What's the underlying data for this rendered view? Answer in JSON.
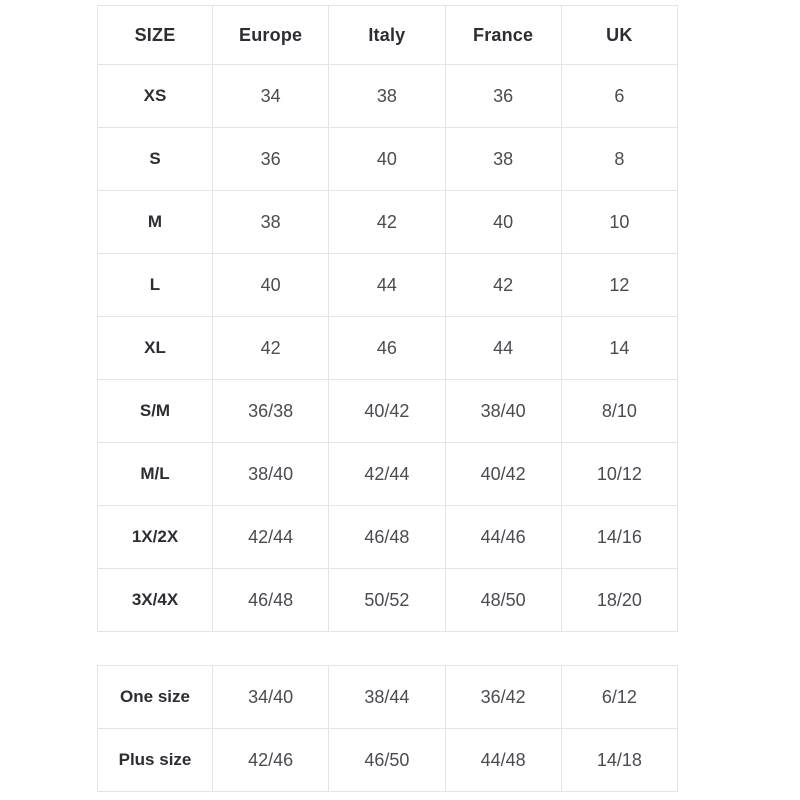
{
  "colors": {
    "background": "#ffffff",
    "border": "#e4e4e6",
    "heading_text": "#2d2d33",
    "value_text": "#4b4b51"
  },
  "size_conversion_table": {
    "columns": [
      "SIZE",
      "Europe",
      "Italy",
      "France",
      "UK"
    ],
    "rows": [
      {
        "label": "XS",
        "values": [
          "34",
          "38",
          "36",
          "6"
        ]
      },
      {
        "label": "S",
        "values": [
          "36",
          "40",
          "38",
          "8"
        ]
      },
      {
        "label": "M",
        "values": [
          "38",
          "42",
          "40",
          "10"
        ]
      },
      {
        "label": "L",
        "values": [
          "40",
          "44",
          "42",
          "12"
        ]
      },
      {
        "label": "XL",
        "values": [
          "42",
          "46",
          "44",
          "14"
        ]
      },
      {
        "label": "S/M",
        "values": [
          "36/38",
          "40/42",
          "38/40",
          "8/10"
        ]
      },
      {
        "label": "M/L",
        "values": [
          "38/40",
          "42/44",
          "40/42",
          "10/12"
        ]
      },
      {
        "label": "1X/2X",
        "values": [
          "42/44",
          "46/48",
          "44/46",
          "14/16"
        ]
      },
      {
        "label": "3X/4X",
        "values": [
          "46/48",
          "50/52",
          "48/50",
          "18/20"
        ]
      }
    ]
  },
  "special_size_table": {
    "rows": [
      {
        "label": "One size",
        "values": [
          "34/40",
          "38/44",
          "36/42",
          "6/12"
        ]
      },
      {
        "label": "Plus size",
        "values": [
          "42/46",
          "46/50",
          "44/48",
          "14/18"
        ]
      }
    ]
  }
}
